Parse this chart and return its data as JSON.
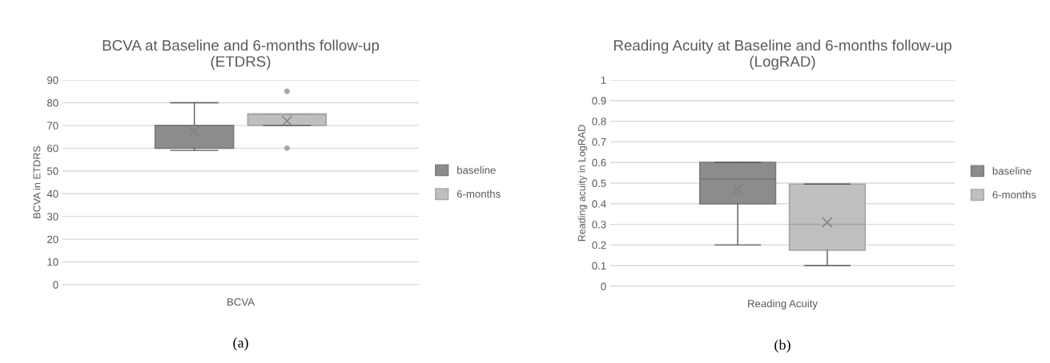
{
  "chart_data": [
    {
      "type": "box",
      "title": "BCVA at Baseline and 6-months follow-up\n(ETDRS)",
      "ylabel": "BCVA in ETDRS",
      "categories": [
        "BCVA"
      ],
      "ylim": [
        0,
        90
      ],
      "yticks": [
        0,
        10,
        20,
        30,
        40,
        50,
        60,
        70,
        80,
        90
      ],
      "grid": "y",
      "legend": "right",
      "annotations": [
        "(a)"
      ],
      "series": [
        {
          "name": "baseline",
          "color": "#8c8c8c",
          "boxes": [
            {
              "low": 59,
              "q1": 60,
              "median": 70,
              "q3": 70,
              "high": 80,
              "mean": 67.5
            }
          ]
        },
        {
          "name": "6-months",
          "color": "#bfbfbf",
          "boxes": [
            {
              "low": 70,
              "q1": 70,
              "median": 75,
              "q3": 75,
              "high": 75,
              "mean": 72,
              "outliers": [
                85,
                60
              ]
            }
          ]
        }
      ]
    },
    {
      "type": "box",
      "title": "Reading Acuity at Baseline and 6-months follow-up\n(LogRAD)",
      "ylabel": "Reading acuity in LogRAD",
      "categories": [
        "Reading Acuity"
      ],
      "ylim": [
        0,
        1
      ],
      "yticks": [
        0,
        0.1,
        0.2,
        0.3,
        0.4,
        0.5,
        0.6,
        0.7,
        0.8,
        0.9,
        1
      ],
      "grid": "y",
      "legend": "right",
      "annotations": [
        "(b)"
      ],
      "series": [
        {
          "name": "baseline",
          "color": "#8c8c8c",
          "boxes": [
            {
              "low": 0.2,
              "q1": 0.4,
              "median": 0.52,
              "q3": 0.6,
              "high": 0.6,
              "mean": 0.47
            }
          ]
        },
        {
          "name": "6-months",
          "color": "#bfbfbf",
          "boxes": [
            {
              "low": 0.1,
              "q1": 0.175,
              "median": 0.3,
              "q3": 0.495,
              "high": 0.495,
              "mean": 0.31
            }
          ]
        }
      ]
    }
  ]
}
